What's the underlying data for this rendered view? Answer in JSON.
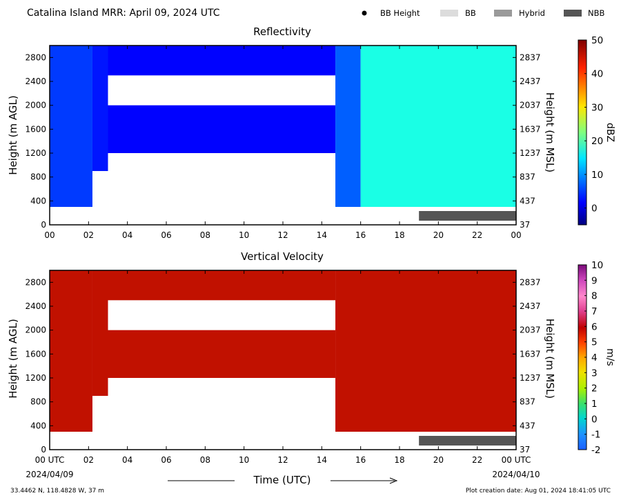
{
  "header": {
    "title": "Catalina Island MRR:  April 09, 2024 UTC",
    "legend": [
      {
        "label": "BB Height",
        "symbol": "dot",
        "color": "#000000"
      },
      {
        "label": "BB",
        "symbol": "swatch",
        "color": "#dcdcdc"
      },
      {
        "label": "Hybrid",
        "symbol": "swatch",
        "color": "#9a9a9a"
      },
      {
        "label": "NBB",
        "symbol": "swatch",
        "color": "#555555"
      }
    ]
  },
  "footer": {
    "location": "33.4462 N, 118.4828 W, 37 m",
    "creation": "Plot creation date: Aug 01, 2024 18:41:05 UTC",
    "xaxis_title": "Time (UTC)",
    "start_date": "2024/04/09",
    "end_date": "2024/04/10"
  },
  "chart_data": [
    {
      "type": "heatmap",
      "title": "Reflectivity",
      "ylabel": "Height (m AGL)",
      "ylabel_right": "Height (m MSL)",
      "x_ticks": [
        "00",
        "02",
        "04",
        "06",
        "08",
        "10",
        "12",
        "14",
        "16",
        "18",
        "20",
        "22",
        "00"
      ],
      "xlim_hours": [
        0,
        24
      ],
      "ylim": [
        0,
        3000
      ],
      "y_ticks": [
        0,
        400,
        800,
        1200,
        1600,
        2000,
        2400,
        2800
      ],
      "y_ticks_right": [
        "37",
        "437",
        "837",
        "1237",
        "1637",
        "2037",
        "2437",
        "2837"
      ],
      "colorbar": {
        "label": "dBZ",
        "min": -5,
        "max": 50,
        "ticks": [
          0,
          10,
          20,
          30,
          40,
          50
        ],
        "colormap": "jet"
      },
      "segments": [
        {
          "start_hour": 0.0,
          "end_hour": 2.2,
          "bottom_m": 300,
          "top_m": 3000,
          "dbz": 5
        },
        {
          "start_hour": 2.2,
          "end_hour": 3.0,
          "bottom_m": 900,
          "top_m": 3000,
          "dbz": 3
        },
        {
          "start_hour": 3.0,
          "end_hour": 14.7,
          "bottom_m": 1200,
          "top_m": 3000,
          "dbz": 2,
          "gap_bottom_m": 2000,
          "gap_top_m": 2500
        },
        {
          "start_hour": 14.7,
          "end_hour": 16.0,
          "bottom_m": 300,
          "top_m": 3000,
          "dbz": 7
        },
        {
          "start_hour": 16.0,
          "end_hour": 24.0,
          "bottom_m": 300,
          "top_m": 3000,
          "dbz": 17
        }
      ],
      "bright_band": {
        "type": "NBB",
        "start_hour": 19.0,
        "end_hour": 24.0
      }
    },
    {
      "type": "heatmap",
      "title": "Vertical Velocity",
      "ylabel": "Height (m AGL)",
      "ylabel_right": "Height (m MSL)",
      "x_ticks": [
        "00 UTC",
        "02",
        "04",
        "06",
        "08",
        "10",
        "12",
        "14",
        "16",
        "18",
        "20",
        "22",
        "00 UTC"
      ],
      "xlim_hours": [
        0,
        24
      ],
      "ylim": [
        0,
        3000
      ],
      "y_ticks": [
        0,
        400,
        800,
        1200,
        1600,
        2000,
        2400,
        2800
      ],
      "y_ticks_right": [
        "37",
        "437",
        "837",
        "1237",
        "1637",
        "2037",
        "2437",
        "2837"
      ],
      "colorbar": {
        "label": "m/s",
        "min": -2,
        "max": 10,
        "ticks": [
          -2,
          -1,
          0,
          1,
          2,
          3,
          4,
          5,
          6,
          7,
          8,
          9,
          10
        ]
      },
      "segments": [
        {
          "start_hour": 0.0,
          "end_hour": 2.2,
          "bottom_m": 300,
          "top_m": 3000,
          "ms": 6
        },
        {
          "start_hour": 2.2,
          "end_hour": 3.0,
          "bottom_m": 900,
          "top_m": 3000,
          "ms": 6
        },
        {
          "start_hour": 3.0,
          "end_hour": 14.7,
          "bottom_m": 1200,
          "top_m": 3000,
          "ms": 6,
          "gap_bottom_m": 2000,
          "gap_top_m": 2500
        },
        {
          "start_hour": 14.7,
          "end_hour": 24.0,
          "bottom_m": 300,
          "top_m": 3000,
          "ms": 6
        }
      ],
      "bright_band": {
        "type": "NBB",
        "start_hour": 19.0,
        "end_hour": 24.0
      }
    }
  ]
}
